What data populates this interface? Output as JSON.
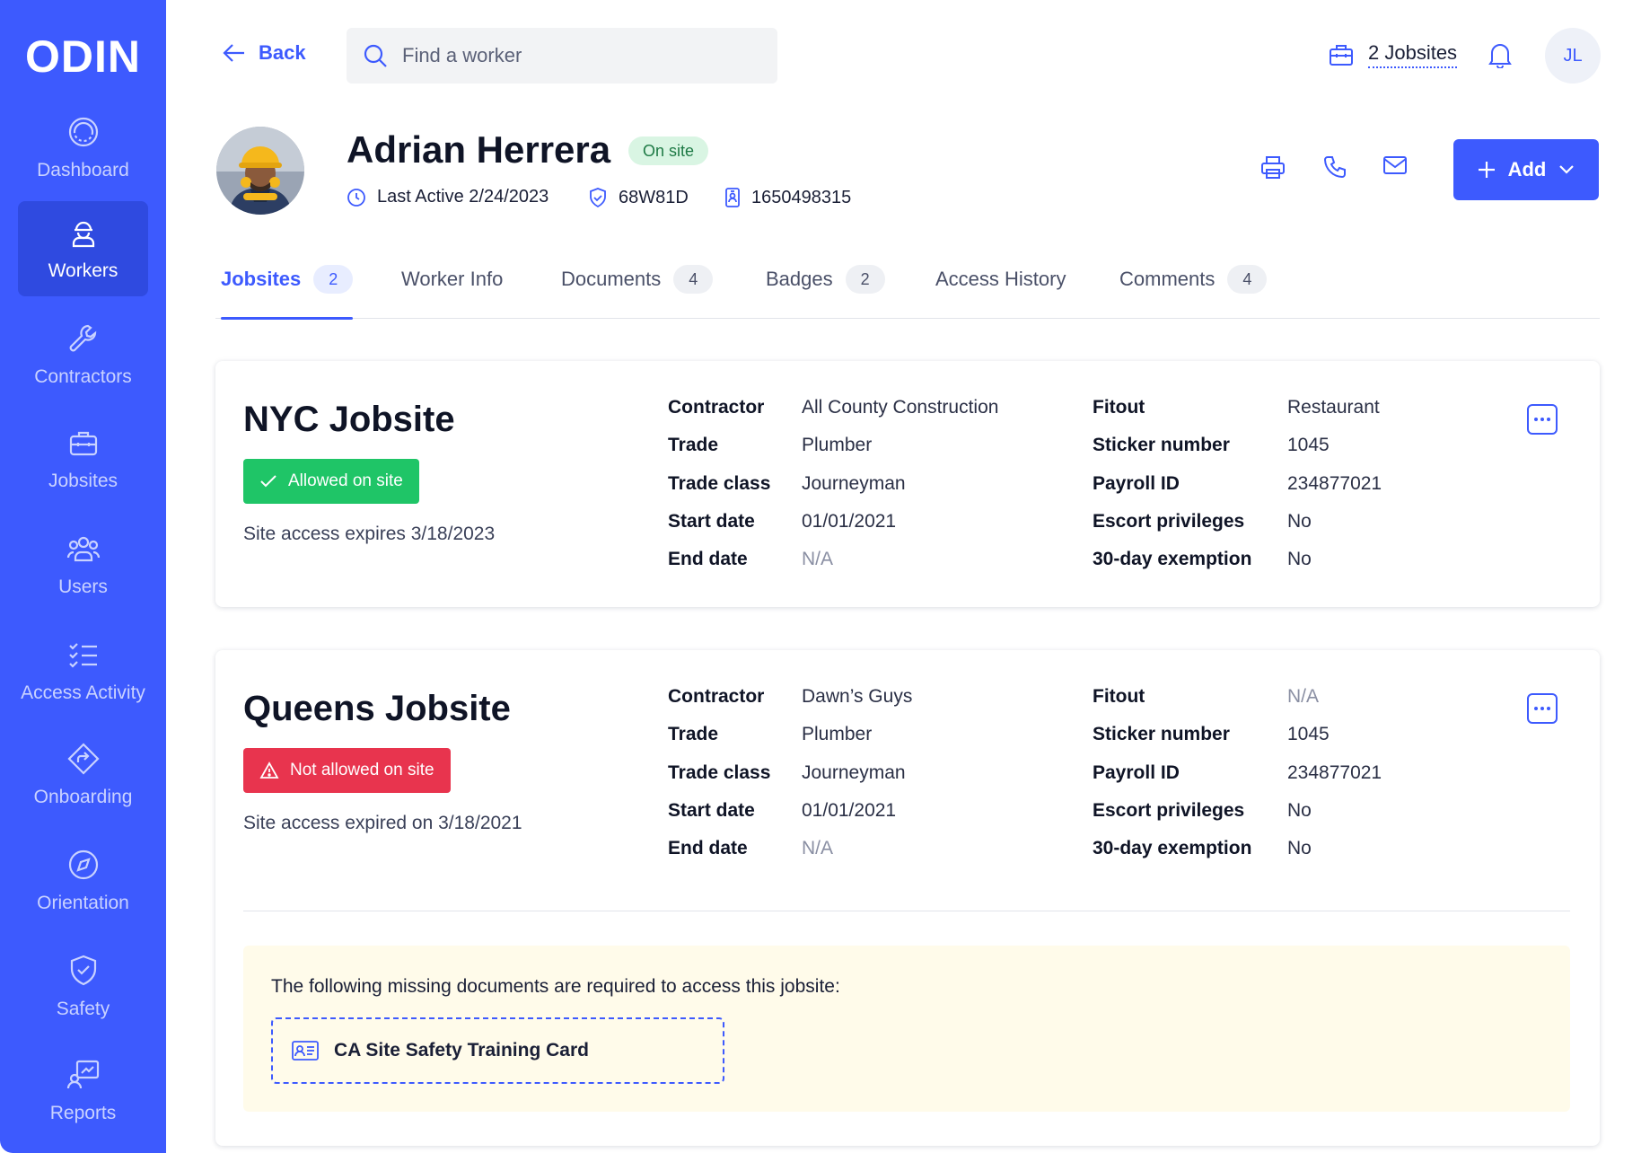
{
  "app": {
    "logo": "ODIN"
  },
  "sidebar": {
    "items": [
      {
        "label": "Dashboard",
        "icon": "dashboard-icon"
      },
      {
        "label": "Workers",
        "icon": "worker-icon",
        "active": true
      },
      {
        "label": "Contractors",
        "icon": "wrench-icon"
      },
      {
        "label": "Jobsites",
        "icon": "briefcase-icon"
      },
      {
        "label": "Users",
        "icon": "users-icon"
      },
      {
        "label": "Access Activity",
        "icon": "checklist-icon"
      },
      {
        "label": "Onboarding",
        "icon": "diamond-arrow-icon"
      },
      {
        "label": "Orientation",
        "icon": "compass-icon"
      },
      {
        "label": "Safety",
        "icon": "shield-check-icon"
      },
      {
        "label": "Reports",
        "icon": "report-icon"
      }
    ]
  },
  "topbar": {
    "back_label": "Back",
    "search_placeholder": "Find a worker",
    "jobsites_label": "2 Jobsites",
    "avatar_initials": "JL"
  },
  "worker": {
    "name": "Adrian Herrera",
    "status": "On site",
    "last_active": "Last Active 2/24/2023",
    "badge_id": "68W81D",
    "worker_id": "1650498315"
  },
  "actions": {
    "add_label": "Add"
  },
  "tabs": [
    {
      "label": "Jobsites",
      "count": "2",
      "active": true
    },
    {
      "label": "Worker Info",
      "count": ""
    },
    {
      "label": "Documents",
      "count": "4"
    },
    {
      "label": "Badges",
      "count": "2"
    },
    {
      "label": "Access History",
      "count": ""
    },
    {
      "label": "Comments",
      "count": "4"
    }
  ],
  "labels": {
    "contractor": "Contractor",
    "trade": "Trade",
    "trade_class": "Trade class",
    "start_date": "Start date",
    "end_date": "End date",
    "fitout": "Fitout",
    "sticker_number": "Sticker number",
    "payroll_id": "Payroll ID",
    "escort_privileges": "Escort privileges",
    "exemption": "30-day exemption"
  },
  "jobsites": [
    {
      "title": "NYC Jobsite",
      "access_status": "Allowed on site",
      "access_note": "Site access expires 3/18/2023",
      "contractor": "All County Construction",
      "trade": "Plumber",
      "trade_class": "Journeyman",
      "start_date": "01/01/2021",
      "end_date": "N/A",
      "fitout": "Restaurant",
      "sticker_number": "1045",
      "payroll_id": "234877021",
      "escort_privileges": "No",
      "exemption": "No"
    },
    {
      "title": "Queens Jobsite",
      "access_status": "Not allowed on site",
      "access_note": "Site access expired on 3/18/2021",
      "contractor": "Dawn’s Guys",
      "trade": "Plumber",
      "trade_class": "Journeyman",
      "start_date": "01/01/2021",
      "end_date": "N/A",
      "fitout": "N/A",
      "sticker_number": "1045",
      "payroll_id": "234877021",
      "escort_privileges": "No",
      "exemption": "No",
      "missing_docs_text": "The following missing documents are required to access this jobsite:",
      "missing_doc": "CA Site Safety Training Card"
    }
  ],
  "colors": {
    "primary": "#3d5afe",
    "success": "#1fc567",
    "danger": "#e8344e",
    "warning_bg": "#fffbea"
  }
}
